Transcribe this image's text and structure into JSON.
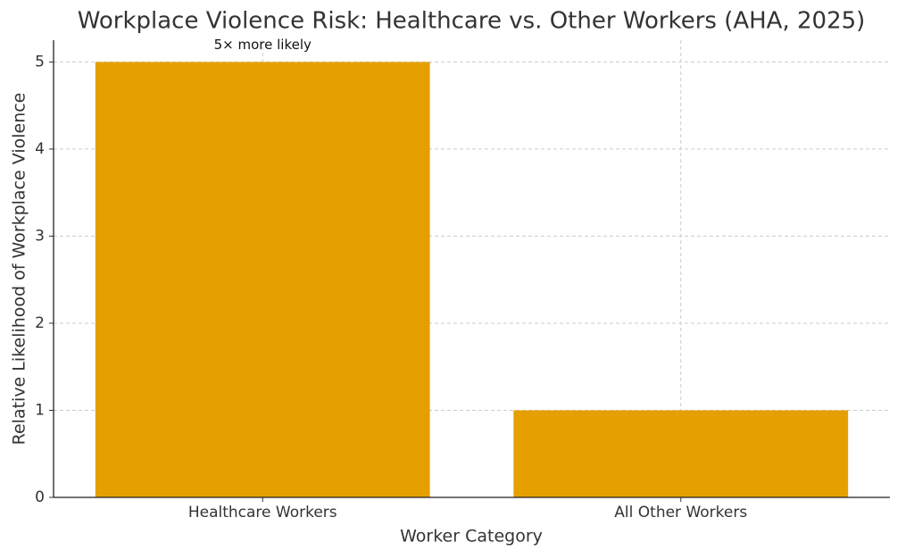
{
  "chart_data": {
    "type": "bar",
    "title": "Workplace Violence Risk: Healthcare vs. Other Workers (AHA, 2025)",
    "x_label": "Worker Category",
    "y_label": "Relative Likelihood of Workplace Violence",
    "categories": [
      "Healthcare Workers",
      "All Other Workers"
    ],
    "values": [
      5,
      1
    ],
    "color": "#e5a000",
    "annotation": "5× more likely",
    "ylim": [
      0,
      5.25
    ],
    "yticks": [
      0,
      1,
      2,
      3,
      4,
      5
    ],
    "grid": true
  }
}
